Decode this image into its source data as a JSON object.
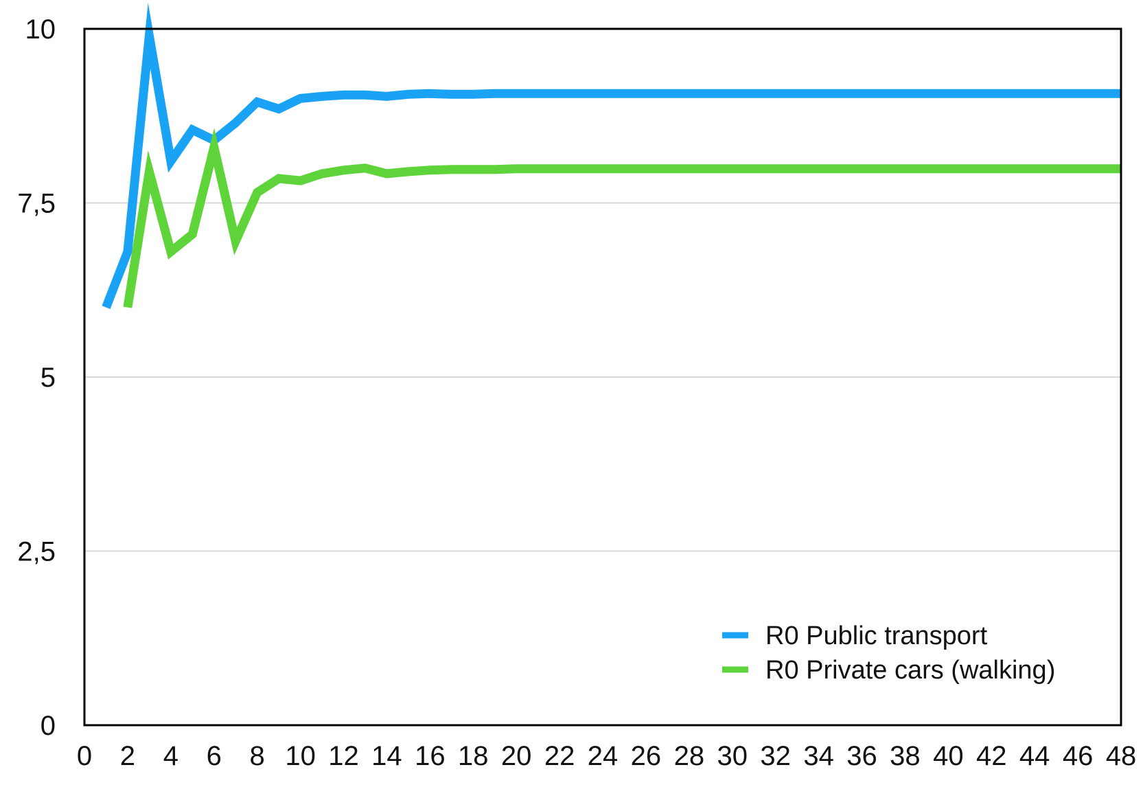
{
  "chart_data": {
    "type": "line",
    "title": "",
    "xlabel": "",
    "ylabel": "",
    "xlim": [
      0,
      48
    ],
    "ylim": [
      0,
      10
    ],
    "x_ticks": [
      0,
      2,
      4,
      6,
      8,
      10,
      12,
      14,
      16,
      18,
      20,
      22,
      24,
      26,
      28,
      30,
      32,
      34,
      36,
      38,
      40,
      42,
      44,
      46,
      48
    ],
    "y_ticks": [
      0,
      2.5,
      5,
      7.5,
      10
    ],
    "x_tick_labels": [
      "0",
      "2",
      "4",
      "6",
      "8",
      "10",
      "12",
      "14",
      "16",
      "18",
      "20",
      "22",
      "24",
      "26",
      "28",
      "30",
      "32",
      "34",
      "36",
      "38",
      "40",
      "42",
      "44",
      "46",
      "48"
    ],
    "y_tick_labels": [
      "0",
      "2,5",
      "5",
      "7,5",
      "10"
    ],
    "grid": {
      "horizontal": true,
      "vertical": false,
      "color": "#d9d9d9"
    },
    "legend": {
      "position": "bottom-right"
    },
    "series": [
      {
        "name": "R0 Public transport",
        "color": "#1aa3f5",
        "x": [
          1,
          2,
          3,
          4,
          5,
          6,
          7,
          8,
          9,
          10,
          11,
          12,
          13,
          14,
          15,
          16,
          17,
          18,
          19,
          20,
          22,
          24,
          26,
          28,
          30,
          32,
          34,
          36,
          38,
          40,
          42,
          44,
          46,
          48
        ],
        "y": [
          6.0,
          6.8,
          9.9,
          8.1,
          8.55,
          8.4,
          8.65,
          8.95,
          8.85,
          9.0,
          9.03,
          9.05,
          9.05,
          9.03,
          9.06,
          9.07,
          9.06,
          9.06,
          9.07,
          9.07,
          9.07,
          9.07,
          9.07,
          9.07,
          9.07,
          9.07,
          9.07,
          9.07,
          9.07,
          9.07,
          9.07,
          9.07,
          9.07,
          9.07
        ]
      },
      {
        "name": "R0 Private cars (walking)",
        "color": "#5ed43a",
        "x": [
          2,
          3,
          4,
          5,
          6,
          7,
          8,
          9,
          10,
          11,
          12,
          13,
          14,
          15,
          16,
          17,
          18,
          19,
          20,
          22,
          24,
          26,
          28,
          30,
          32,
          34,
          36,
          38,
          40,
          42,
          44,
          46,
          48
        ],
        "y": [
          6.0,
          7.95,
          6.8,
          7.05,
          8.3,
          6.95,
          7.65,
          7.85,
          7.82,
          7.92,
          7.97,
          8.0,
          7.92,
          7.95,
          7.97,
          7.98,
          7.98,
          7.98,
          7.99,
          7.99,
          7.99,
          7.99,
          7.99,
          7.99,
          7.99,
          7.99,
          7.99,
          7.99,
          7.99,
          7.99,
          7.99,
          7.99,
          7.99
        ]
      }
    ]
  }
}
